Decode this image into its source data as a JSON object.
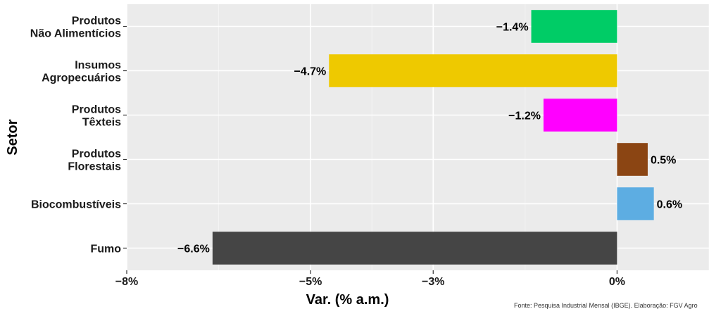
{
  "chart_data": {
    "type": "bar",
    "orientation": "horizontal",
    "categories": [
      [
        "Produtos",
        "Não Alimentícios"
      ],
      [
        "Insumos",
        "Agropecuários"
      ],
      [
        "Produtos",
        "Têxteis"
      ],
      [
        "Produtos",
        "Florestais"
      ],
      [
        "Biocombustíveis"
      ],
      [
        "Fumo"
      ]
    ],
    "values": [
      -1.4,
      -4.7,
      -1.2,
      0.5,
      0.6,
      -6.6
    ],
    "value_labels": [
      "−1.4%",
      "−4.7%",
      "−1.2%",
      "0.5%",
      "0.6%",
      "−6.6%"
    ],
    "colors": [
      "#00cc66",
      "#eec900",
      "#ff00ff",
      "#8b4513",
      "#5dade2",
      "#454545"
    ],
    "xlim": [
      -8,
      1.5
    ],
    "x_ticks": [
      -8,
      -5,
      -3,
      0
    ],
    "x_tick_labels": [
      "−8%",
      "−5%",
      "−3%",
      "0%"
    ],
    "xlabel": "Var. (% a.m.)",
    "ylabel": "Setor",
    "grid": true,
    "legend": "none",
    "background": "#ebebeb"
  },
  "source_note": "Fonte: Pesquisa Industrial Mensal (IBGE). Elaboração: FGV Agro"
}
